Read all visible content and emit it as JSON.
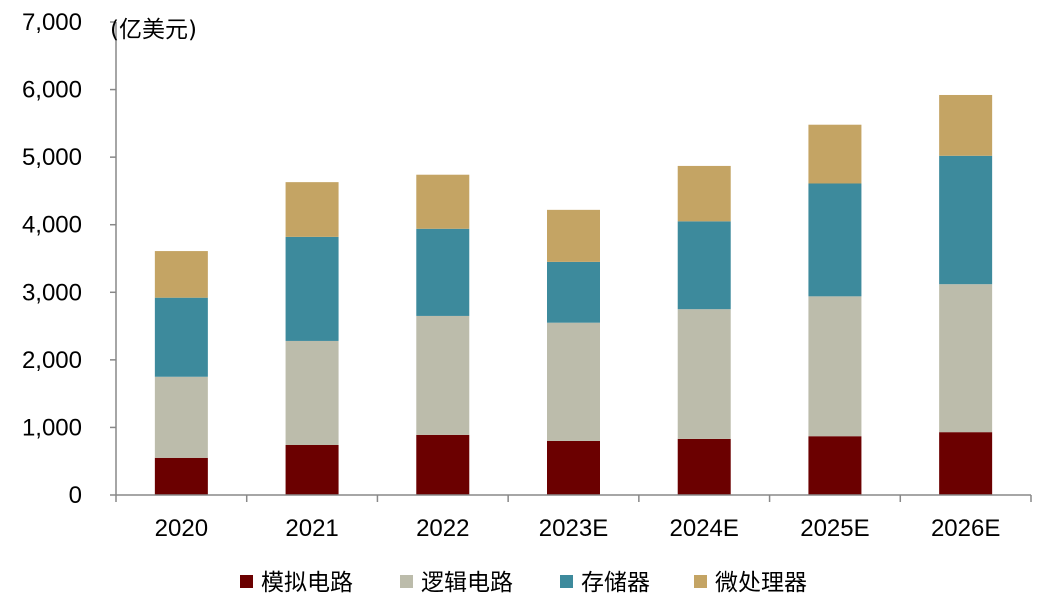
{
  "chart_data": {
    "type": "bar",
    "stacked": true,
    "unit_label": "(亿美元)",
    "categories": [
      "2020",
      "2021",
      "2022",
      "2023E",
      "2024E",
      "2025E",
      "2026E"
    ],
    "series": [
      {
        "name": "模拟电路",
        "color": "#6b0000",
        "values": [
          550,
          740,
          890,
          800,
          830,
          870,
          930
        ]
      },
      {
        "name": "逻辑电路",
        "color": "#bcbcab",
        "values": [
          1200,
          1540,
          1760,
          1750,
          1920,
          2070,
          2190
        ]
      },
      {
        "name": "存储器",
        "color": "#3d8a9c",
        "values": [
          1170,
          1540,
          1290,
          900,
          1300,
          1670,
          1900
        ]
      },
      {
        "name": "微处理器",
        "color": "#c4a464",
        "values": [
          690,
          810,
          800,
          770,
          820,
          870,
          900
        ]
      }
    ],
    "ylim": [
      0,
      7000
    ],
    "yticks": [
      0,
      1000,
      2000,
      3000,
      4000,
      5000,
      6000,
      7000
    ],
    "ytick_labels": [
      "0",
      "1,000",
      "2,000",
      "3,000",
      "4,000",
      "5,000",
      "6,000",
      "7,000"
    ],
    "legend_position": "bottom"
  }
}
